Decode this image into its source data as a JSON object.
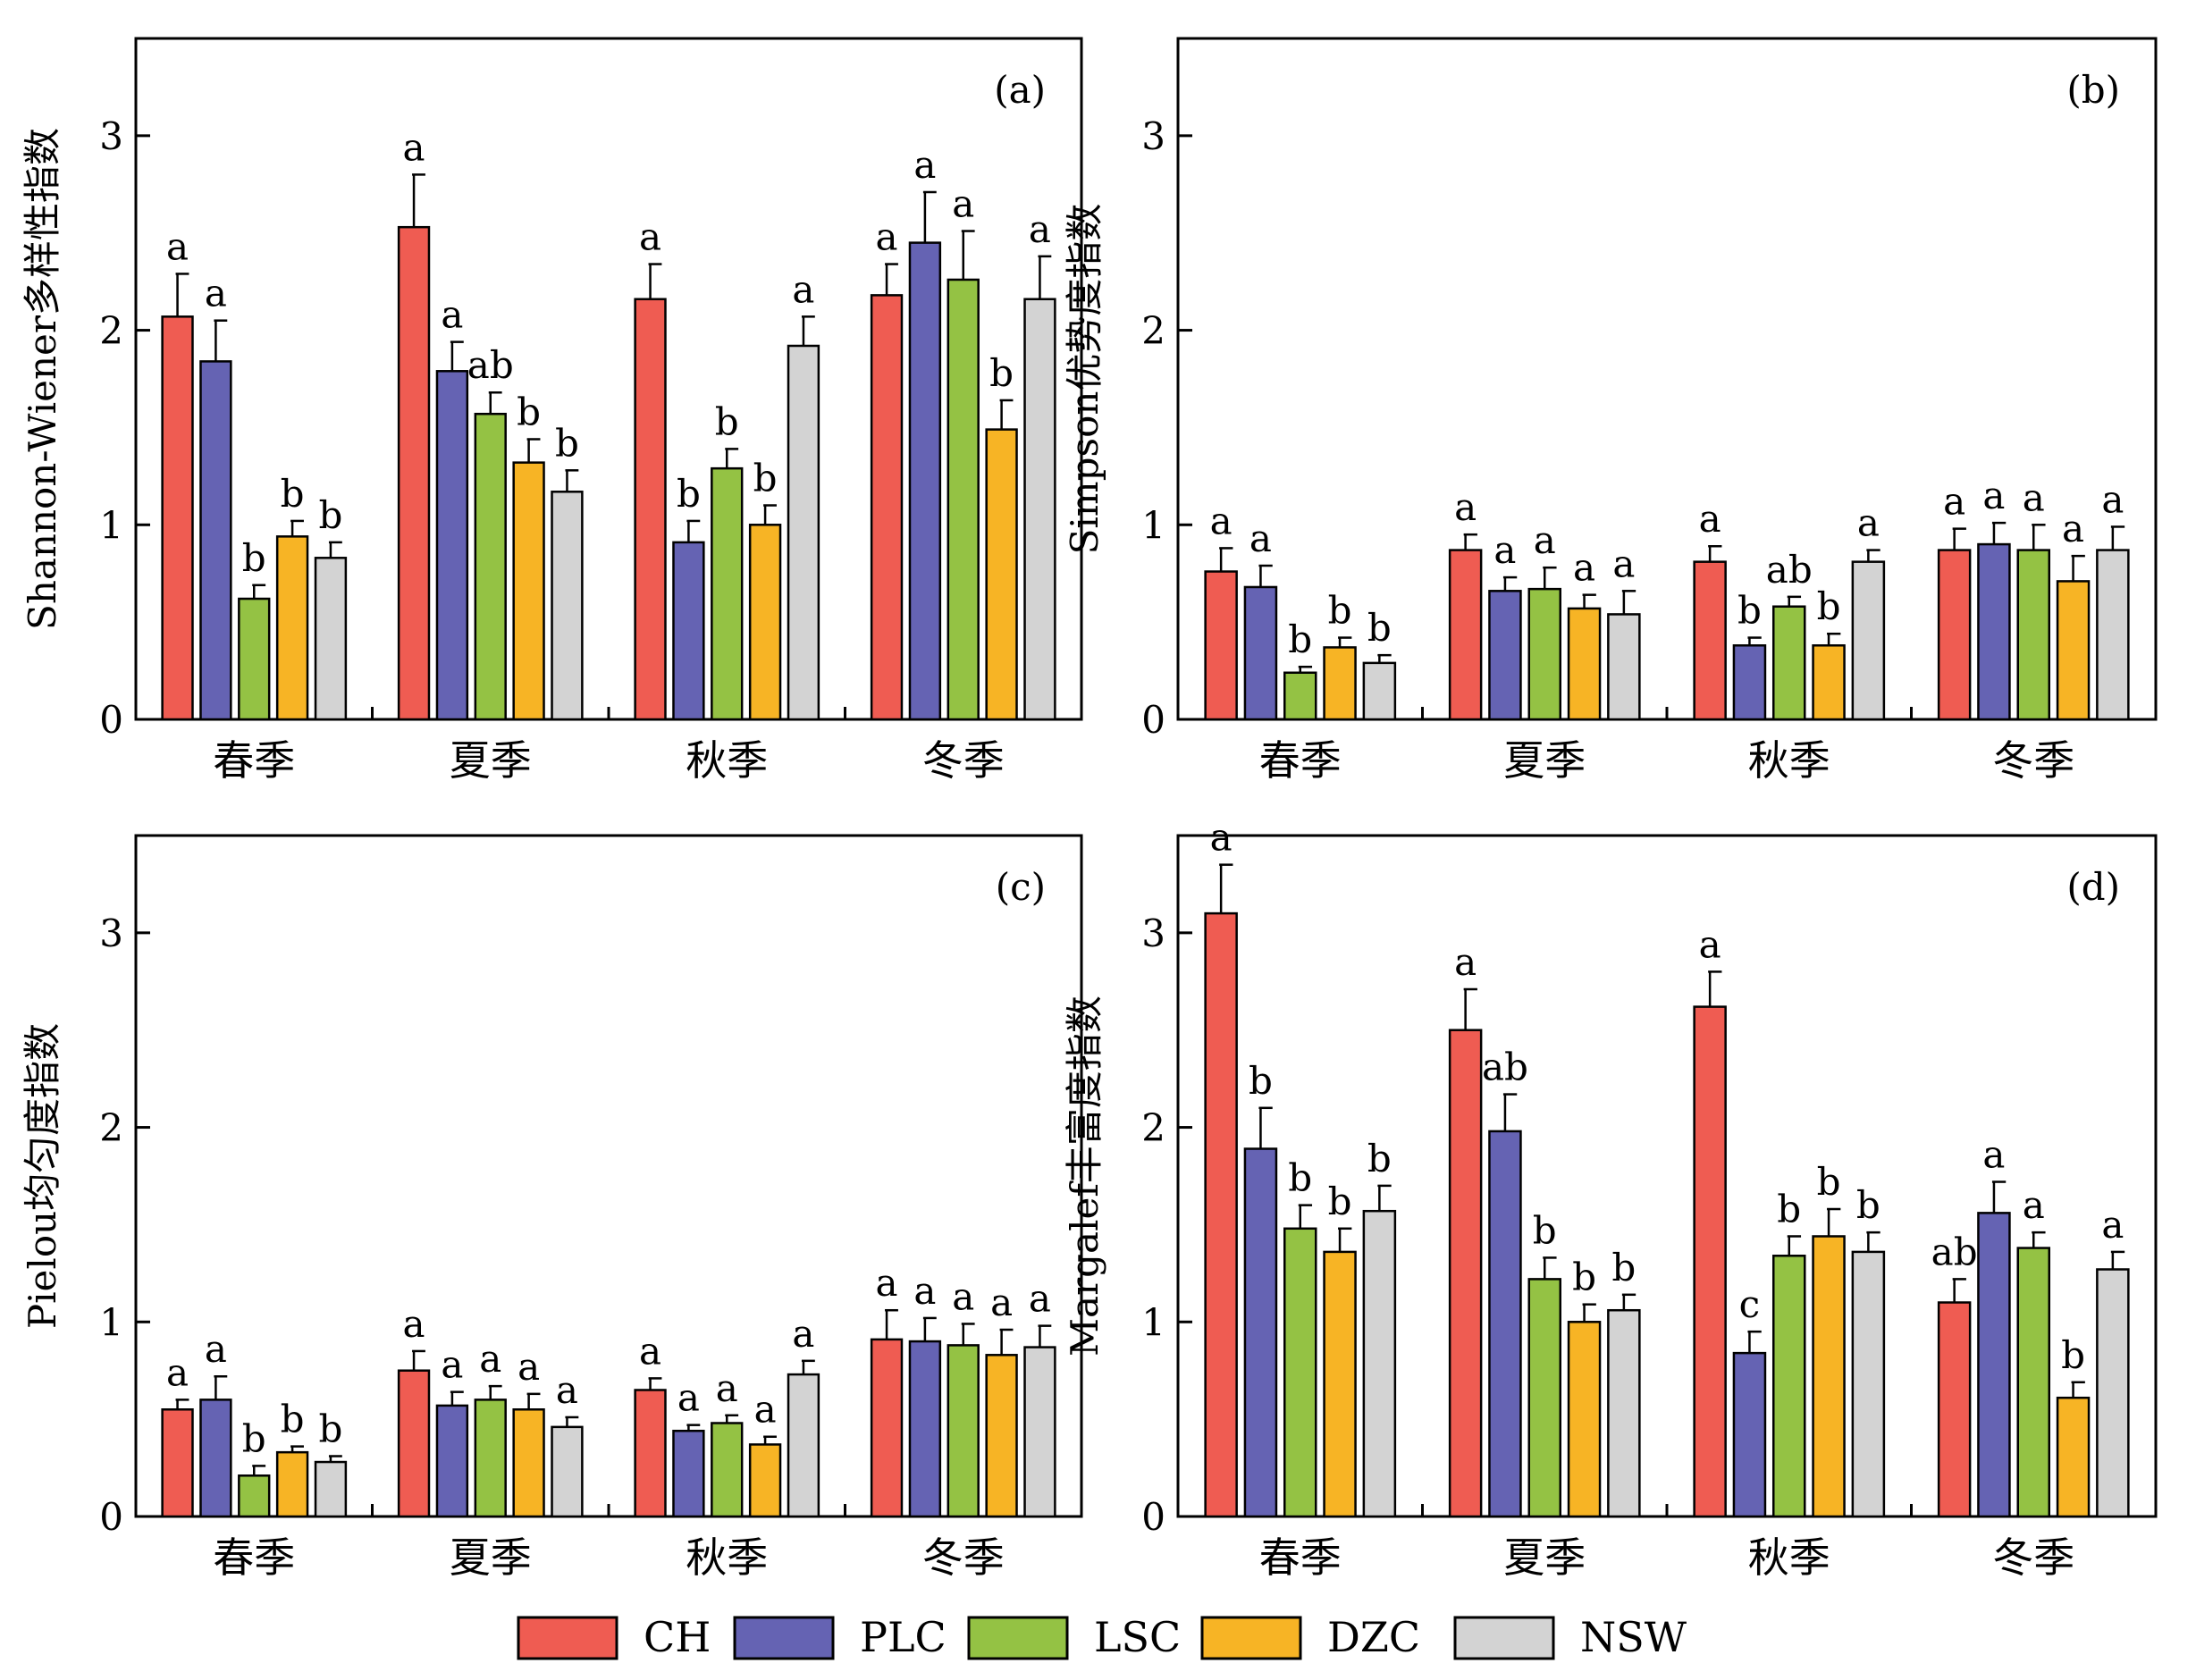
{
  "colors": {
    "CH": "#ef5c52",
    "PLC": "#6563b3",
    "LSC": "#94c244",
    "DZC": "#f7b425",
    "NSW": "#d3d3d3"
  },
  "legend": [
    "CH",
    "PLC",
    "LSC",
    "DZC",
    "NSW"
  ],
  "chart_data": [
    {
      "type": "bar",
      "panel_label": "(a)",
      "ylabel": "Shannon-Wiener多样性指数",
      "xlabel": "",
      "ylim": [
        0,
        3.5
      ],
      "yticks": [
        "0",
        "1",
        "2",
        "3"
      ],
      "categories": [
        "春季",
        "夏季",
        "秋季",
        "冬季"
      ],
      "series": [
        {
          "name": "CH",
          "values": [
            2.07,
            2.53,
            2.16,
            2.18
          ],
          "errors": [
            0.22,
            0.27,
            0.18,
            0.16
          ],
          "letters": [
            "a",
            "a",
            "a",
            "a"
          ]
        },
        {
          "name": "PLC",
          "values": [
            1.84,
            1.79,
            0.91,
            2.45
          ],
          "errors": [
            0.21,
            0.15,
            0.11,
            0.26
          ],
          "letters": [
            "a",
            "a",
            "b",
            "a"
          ]
        },
        {
          "name": "LSC",
          "values": [
            0.62,
            1.57,
            1.29,
            2.26
          ],
          "errors": [
            0.07,
            0.11,
            0.1,
            0.25
          ],
          "letters": [
            "b",
            "ab",
            "b",
            "a"
          ]
        },
        {
          "name": "DZC",
          "values": [
            0.94,
            1.32,
            1.0,
            1.49
          ],
          "errors": [
            0.08,
            0.12,
            0.1,
            0.15
          ],
          "letters": [
            "b",
            "b",
            "b",
            "b"
          ]
        },
        {
          "name": "NSW",
          "values": [
            0.83,
            1.17,
            1.92,
            2.16
          ],
          "errors": [
            0.08,
            0.11,
            0.15,
            0.22
          ],
          "letters": [
            "b",
            "b",
            "a",
            "a"
          ]
        }
      ]
    },
    {
      "type": "bar",
      "panel_label": "(b)",
      "ylabel": "Simpson优势度指数",
      "xlabel": "",
      "ylim": [
        0,
        3.5
      ],
      "yticks": [
        "0",
        "1",
        "2",
        "3"
      ],
      "categories": [
        "春季",
        "夏季",
        "秋季",
        "冬季"
      ],
      "series": [
        {
          "name": "CH",
          "values": [
            0.76,
            0.87,
            0.81,
            0.87
          ],
          "errors": [
            0.12,
            0.08,
            0.08,
            0.11
          ],
          "letters": [
            "a",
            "a",
            "a",
            "a"
          ]
        },
        {
          "name": "PLC",
          "values": [
            0.68,
            0.66,
            0.38,
            0.9
          ],
          "errors": [
            0.11,
            0.07,
            0.04,
            0.11
          ],
          "letters": [
            "a",
            "a",
            "b",
            "a"
          ]
        },
        {
          "name": "LSC",
          "values": [
            0.24,
            0.67,
            0.58,
            0.87
          ],
          "errors": [
            0.03,
            0.11,
            0.05,
            0.13
          ],
          "letters": [
            "b",
            "a",
            "ab",
            "a"
          ]
        },
        {
          "name": "DZC",
          "values": [
            0.37,
            0.57,
            0.38,
            0.71
          ],
          "errors": [
            0.05,
            0.07,
            0.06,
            0.13
          ],
          "letters": [
            "b",
            "a",
            "b",
            "a"
          ]
        },
        {
          "name": "NSW",
          "values": [
            0.29,
            0.54,
            0.81,
            0.87
          ],
          "errors": [
            0.04,
            0.12,
            0.06,
            0.12
          ],
          "letters": [
            "b",
            "a",
            "a",
            "a"
          ]
        }
      ]
    },
    {
      "type": "bar",
      "panel_label": "(c)",
      "ylabel": "Pielou均匀度指数",
      "xlabel": "",
      "ylim": [
        0,
        3.5
      ],
      "yticks": [
        "0",
        "1",
        "2",
        "3"
      ],
      "categories": [
        "春季",
        "夏季",
        "秋季",
        "冬季"
      ],
      "series": [
        {
          "name": "CH",
          "values": [
            0.55,
            0.75,
            0.65,
            0.91
          ],
          "errors": [
            0.05,
            0.1,
            0.06,
            0.15
          ],
          "letters": [
            "a",
            "a",
            "a",
            "a"
          ]
        },
        {
          "name": "PLC",
          "values": [
            0.6,
            0.57,
            0.44,
            0.9
          ],
          "errors": [
            0.12,
            0.07,
            0.03,
            0.12
          ],
          "letters": [
            "a",
            "a",
            "a",
            "a"
          ]
        },
        {
          "name": "LSC",
          "values": [
            0.21,
            0.6,
            0.48,
            0.88
          ],
          "errors": [
            0.05,
            0.07,
            0.04,
            0.11
          ],
          "letters": [
            "b",
            "a",
            "a",
            "a"
          ]
        },
        {
          "name": "DZC",
          "values": [
            0.33,
            0.55,
            0.37,
            0.83
          ],
          "errors": [
            0.03,
            0.08,
            0.04,
            0.13
          ],
          "letters": [
            "b",
            "a",
            "a",
            "a"
          ]
        },
        {
          "name": "NSW",
          "values": [
            0.28,
            0.46,
            0.73,
            0.87
          ],
          "errors": [
            0.03,
            0.05,
            0.07,
            0.11
          ],
          "letters": [
            "b",
            "a",
            "a",
            "a"
          ]
        }
      ]
    },
    {
      "type": "bar",
      "panel_label": "(d)",
      "ylabel": "Margalef丰富度指数",
      "xlabel": "",
      "ylim": [
        0,
        3.5
      ],
      "yticks": [
        "0",
        "1",
        "2",
        "3"
      ],
      "categories": [
        "春季",
        "夏季",
        "秋季",
        "冬季"
      ],
      "series": [
        {
          "name": "CH",
          "values": [
            3.1,
            2.5,
            2.62,
            1.1
          ],
          "errors": [
            0.25,
            0.21,
            0.18,
            0.12
          ],
          "letters": [
            "a",
            "a",
            "a",
            "ab"
          ]
        },
        {
          "name": "PLC",
          "values": [
            1.89,
            1.98,
            0.84,
            1.56
          ],
          "errors": [
            0.21,
            0.19,
            0.11,
            0.16
          ],
          "letters": [
            "b",
            "ab",
            "c",
            "a"
          ]
        },
        {
          "name": "LSC",
          "values": [
            1.48,
            1.22,
            1.34,
            1.38
          ],
          "errors": [
            0.12,
            0.11,
            0.1,
            0.08
          ],
          "letters": [
            "b",
            "b",
            "b",
            "a"
          ]
        },
        {
          "name": "DZC",
          "values": [
            1.36,
            1.0,
            1.44,
            0.61
          ],
          "errors": [
            0.12,
            0.09,
            0.14,
            0.08
          ],
          "letters": [
            "b",
            "b",
            "b",
            "b"
          ]
        },
        {
          "name": "NSW",
          "values": [
            1.57,
            1.06,
            1.36,
            1.27
          ],
          "errors": [
            0.13,
            0.08,
            0.1,
            0.09
          ],
          "letters": [
            "b",
            "b",
            "b",
            "a"
          ]
        }
      ]
    }
  ]
}
